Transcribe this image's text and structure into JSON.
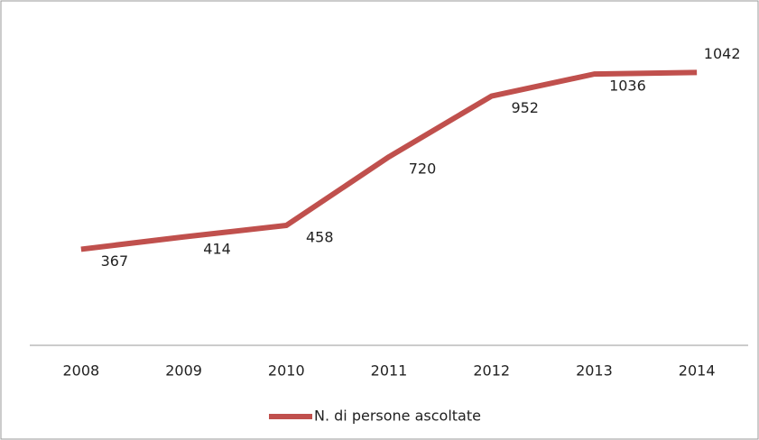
{
  "chart_data": {
    "type": "line",
    "categories": [
      "2008",
      "2009",
      "2010",
      "2011",
      "2012",
      "2013",
      "2014"
    ],
    "series": [
      {
        "name": "N. di persone ascoltate",
        "color": "#c0504d",
        "values": [
          367,
          414,
          458,
          720,
          952,
          1036,
          1042
        ]
      }
    ],
    "ylim": [
      0,
      1200
    ],
    "legend": "bottom"
  }
}
